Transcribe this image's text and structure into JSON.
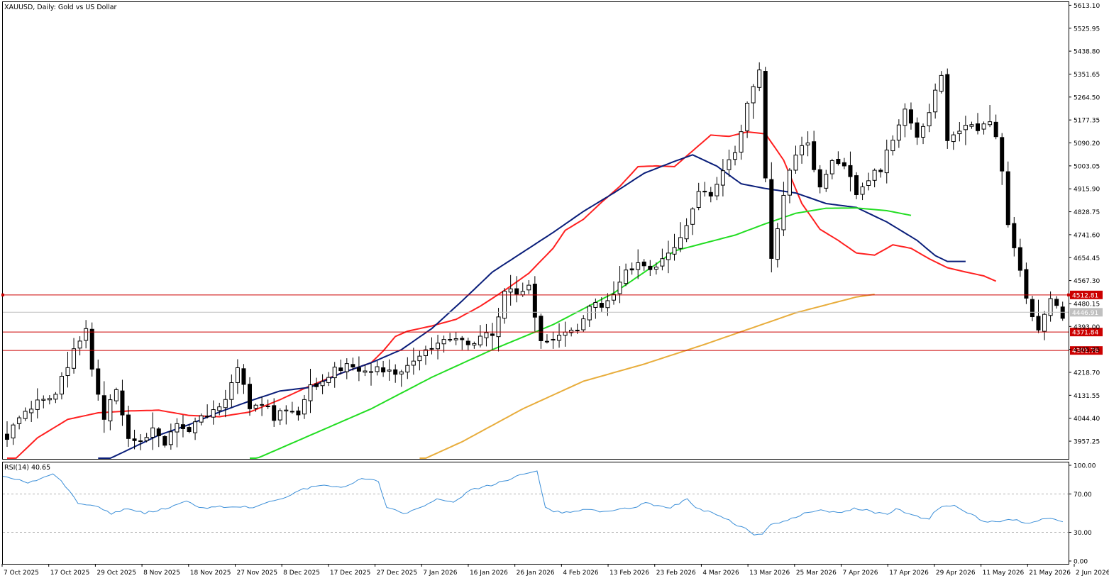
{
  "chart_title": "XAUUSD, Daily:  Gold vs US Dollar",
  "rsi_title": "RSI(14) 40.65",
  "chart_data": {
    "type": "candlestick",
    "symbol": "XAUUSD",
    "timeframe": "Daily",
    "ylim": [
      3890,
      5625
    ],
    "price_ticks": [
      "5613.10",
      "5525.95",
      "5438.80",
      "5351.65",
      "5264.50",
      "5177.35",
      "5090.20",
      "5003.05",
      "4915.90",
      "4828.75",
      "4741.60",
      "4654.45",
      "4567.30",
      "4480.15",
      "4393.00",
      "4305.85",
      "4218.70",
      "4131.55",
      "4044.40",
      "3957.25"
    ],
    "date_ticks": [
      "7 Oct 2025",
      "17 Oct 2025",
      "29 Oct 2025",
      "8 Nov 2025",
      "18 Nov 2025",
      "27 Nov 2025",
      "8 Dec 2025",
      "17 Dec 2025",
      "27 Dec 2025",
      "7 Jan 2026",
      "16 Jan 2026",
      "26 Jan 2026",
      "4 Feb 2026",
      "13 Feb 2026",
      "23 Feb 2026",
      "4 Mar 2026",
      "13 Mar 2026",
      "25 Mar 2026",
      "7 Apr 2026",
      "17 Apr 2026",
      "29 Apr 2026",
      "11 May 2026",
      "21 May 2026",
      "2 Jun 2026"
    ],
    "candle_count": 175,
    "anchors": [
      [
        0,
        3975
      ],
      [
        3,
        4080
      ],
      [
        6,
        4110
      ],
      [
        8,
        4140
      ],
      [
        10,
        4250
      ],
      [
        12,
        4345
      ],
      [
        13,
        4385
      ],
      [
        14,
        4240
      ],
      [
        16,
        4050
      ],
      [
        18,
        4150
      ],
      [
        20,
        3980
      ],
      [
        22,
        3955
      ],
      [
        24,
        4010
      ],
      [
        26,
        3950
      ],
      [
        28,
        4035
      ],
      [
        30,
        3990
      ],
      [
        32,
        4050
      ],
      [
        34,
        4075
      ],
      [
        36,
        4115
      ],
      [
        38,
        4245
      ],
      [
        40,
        4080
      ],
      [
        42,
        4100
      ],
      [
        44,
        4050
      ],
      [
        46,
        4075
      ],
      [
        48,
        4070
      ],
      [
        50,
        4160
      ],
      [
        52,
        4190
      ],
      [
        54,
        4225
      ],
      [
        56,
        4245
      ],
      [
        58,
        4235
      ],
      [
        60,
        4232
      ],
      [
        62,
        4225
      ],
      [
        64,
        4218
      ],
      [
        66,
        4240
      ],
      [
        68,
        4285
      ],
      [
        70,
        4315
      ],
      [
        72,
        4330
      ],
      [
        74,
        4340
      ],
      [
        76,
        4325
      ],
      [
        78,
        4355
      ],
      [
        80,
        4360
      ],
      [
        82,
        4515
      ],
      [
        84,
        4530
      ],
      [
        86,
        4535
      ],
      [
        88,
        4350
      ],
      [
        90,
        4345
      ],
      [
        92,
        4365
      ],
      [
        94,
        4390
      ],
      [
        96,
        4460
      ],
      [
        98,
        4480
      ],
      [
        100,
        4520
      ],
      [
        102,
        4600
      ],
      [
        104,
        4625
      ],
      [
        106,
        4605
      ],
      [
        108,
        4640
      ],
      [
        110,
        4690
      ],
      [
        112,
        4780
      ],
      [
        114,
        4895
      ],
      [
        116,
        4900
      ],
      [
        118,
        4990
      ],
      [
        120,
        5060
      ],
      [
        122,
        5230
      ],
      [
        124,
        5382
      ],
      [
        125,
        4960
      ],
      [
        126,
        4650
      ],
      [
        127,
        4750
      ],
      [
        128,
        4895
      ],
      [
        130,
        5050
      ],
      [
        132,
        5080
      ],
      [
        134,
        4920
      ],
      [
        136,
        5035
      ],
      [
        138,
        5010
      ],
      [
        140,
        4885
      ],
      [
        142,
        4960
      ],
      [
        144,
        4995
      ],
      [
        146,
        5110
      ],
      [
        148,
        5210
      ],
      [
        150,
        5110
      ],
      [
        152,
        5220
      ],
      [
        154,
        5340
      ],
      [
        155,
        5100
      ],
      [
        156,
        5120
      ],
      [
        158,
        5145
      ],
      [
        160,
        5150
      ],
      [
        162,
        5180
      ],
      [
        163,
        5110
      ],
      [
        164,
        4990
      ],
      [
        165,
        4780
      ],
      [
        167,
        4620
      ],
      [
        168,
        4500
      ],
      [
        170,
        4390
      ],
      [
        172,
        4490
      ],
      [
        174,
        4430
      ]
    ],
    "moving_averages": [
      {
        "color": "#ff2020",
        "values": [
          [
            0,
            3860
          ],
          [
            5,
            3970
          ],
          [
            10,
            4040
          ],
          [
            15,
            4065
          ],
          [
            20,
            4072
          ],
          [
            25,
            4075
          ],
          [
            30,
            4055
          ],
          [
            35,
            4050
          ],
          [
            40,
            4068
          ],
          [
            45,
            4115
          ],
          [
            50,
            4168
          ],
          [
            55,
            4215
          ],
          [
            60,
            4255
          ],
          [
            62,
            4300
          ],
          [
            64,
            4355
          ],
          [
            66,
            4375
          ],
          [
            70,
            4395
          ],
          [
            74,
            4420
          ],
          [
            78,
            4470
          ],
          [
            82,
            4530
          ],
          [
            86,
            4595
          ],
          [
            90,
            4690
          ],
          [
            92,
            4758
          ],
          [
            95,
            4800
          ],
          [
            98,
            4865
          ],
          [
            101,
            4925
          ],
          [
            104,
            5000
          ],
          [
            107,
            5003
          ],
          [
            110,
            5000
          ],
          [
            113,
            5060
          ],
          [
            116,
            5120
          ],
          [
            119,
            5115
          ],
          [
            122,
            5132
          ],
          [
            125,
            5125
          ],
          [
            128,
            5025
          ],
          [
            131,
            4860
          ],
          [
            134,
            4762
          ],
          [
            137,
            4720
          ],
          [
            140,
            4672
          ],
          [
            143,
            4664
          ],
          [
            146,
            4703
          ],
          [
            149,
            4690
          ],
          [
            152,
            4650
          ],
          [
            155,
            4616
          ],
          [
            158,
            4600
          ],
          [
            161,
            4585
          ],
          [
            163,
            4565
          ]
        ]
      },
      {
        "color": "#0a1e7a",
        "values": [
          [
            15,
            3870
          ],
          [
            20,
            3925
          ],
          [
            25,
            3980
          ],
          [
            30,
            4020
          ],
          [
            35,
            4068
          ],
          [
            40,
            4110
          ],
          [
            45,
            4148
          ],
          [
            50,
            4162
          ],
          [
            55,
            4215
          ],
          [
            60,
            4255
          ],
          [
            65,
            4305
          ],
          [
            70,
            4385
          ],
          [
            75,
            4490
          ],
          [
            80,
            4600
          ],
          [
            85,
            4675
          ],
          [
            90,
            4750
          ],
          [
            95,
            4830
          ],
          [
            100,
            4900
          ],
          [
            105,
            4975
          ],
          [
            110,
            5020
          ],
          [
            113,
            5045
          ],
          [
            117,
            5002
          ],
          [
            121,
            4935
          ],
          [
            125,
            4917
          ],
          [
            130,
            4900
          ],
          [
            135,
            4860
          ],
          [
            140,
            4845
          ],
          [
            145,
            4790
          ],
          [
            150,
            4720
          ],
          [
            153,
            4662
          ],
          [
            155,
            4640
          ],
          [
            158,
            4640
          ]
        ]
      },
      {
        "color": "#22dd22",
        "values": [
          [
            40,
            3880
          ],
          [
            50,
            3980
          ],
          [
            60,
            4080
          ],
          [
            70,
            4200
          ],
          [
            80,
            4305
          ],
          [
            90,
            4400
          ],
          [
            100,
            4520
          ],
          [
            107,
            4630
          ],
          [
            110,
            4680
          ],
          [
            115,
            4710
          ],
          [
            120,
            4740
          ],
          [
            125,
            4783
          ],
          [
            130,
            4823
          ],
          [
            135,
            4842
          ],
          [
            140,
            4843
          ],
          [
            145,
            4833
          ],
          [
            149,
            4815
          ]
        ]
      },
      {
        "color": "#e8ad3c",
        "values": [
          [
            68,
            3882
          ],
          [
            75,
            3955
          ],
          [
            85,
            4080
          ],
          [
            95,
            4185
          ],
          [
            105,
            4250
          ],
          [
            115,
            4325
          ],
          [
            125,
            4405
          ],
          [
            130,
            4445
          ],
          [
            135,
            4475
          ],
          [
            140,
            4505
          ],
          [
            143,
            4515
          ]
        ]
      }
    ],
    "hlines": [
      {
        "price": 4512.81,
        "label": "4512.81",
        "color": "#cc0000"
      },
      {
        "price": 4446.91,
        "label": "4446.91",
        "color": "#c0c0c0"
      },
      {
        "price": 4371.84,
        "label": "4371.84",
        "color": "#cc0000"
      },
      {
        "price": 4301.76,
        "label": "4301.76",
        "color": "#cc0000"
      }
    ],
    "rsi": {
      "ticks": [
        "100.00",
        "70.00",
        "30.00",
        "0.00"
      ],
      "levels": [
        70,
        30
      ],
      "color": "#3c8fd8",
      "anchors": [
        [
          0,
          89
        ],
        [
          3,
          82
        ],
        [
          6,
          90
        ],
        [
          7,
          85
        ],
        [
          9,
          60
        ],
        [
          11,
          58
        ],
        [
          13,
          50
        ],
        [
          15,
          55
        ],
        [
          17,
          50
        ],
        [
          20,
          56
        ],
        [
          22,
          62
        ],
        [
          24,
          55
        ],
        [
          27,
          57
        ],
        [
          30,
          56
        ],
        [
          32,
          63
        ],
        [
          34,
          67
        ],
        [
          36,
          75
        ],
        [
          38,
          79
        ],
        [
          41,
          78
        ],
        [
          43,
          87
        ],
        [
          45,
          84
        ],
        [
          46,
          55
        ],
        [
          48,
          50
        ],
        [
          50,
          55
        ],
        [
          52,
          64
        ],
        [
          54,
          62
        ],
        [
          56,
          74
        ],
        [
          58,
          78
        ],
        [
          60,
          83
        ],
        [
          62,
          90
        ],
        [
          64,
          94
        ],
        [
          65,
          55
        ],
        [
          67,
          50
        ],
        [
          70,
          54
        ],
        [
          72,
          52
        ],
        [
          75,
          55
        ],
        [
          77,
          60
        ],
        [
          80,
          55
        ],
        [
          82,
          66
        ],
        [
          83,
          55
        ],
        [
          85,
          50
        ],
        [
          87,
          42
        ],
        [
          89,
          33
        ],
        [
          90,
          26
        ],
        [
          91,
          28
        ],
        [
          92,
          38
        ],
        [
          94,
          42
        ],
        [
          96,
          50
        ],
        [
          98,
          53
        ],
        [
          100,
          50
        ],
        [
          102,
          55
        ],
        [
          104,
          52
        ],
        [
          106,
          48
        ],
        [
          107,
          55
        ],
        [
          109,
          47
        ],
        [
          111,
          45
        ],
        [
          112,
          55
        ],
        [
          114,
          58
        ],
        [
          116,
          48
        ],
        [
          118,
          40
        ],
        [
          119,
          42
        ],
        [
          121,
          43
        ],
        [
          123,
          40
        ],
        [
          125,
          44
        ],
        [
          127,
          42
        ]
      ]
    }
  }
}
